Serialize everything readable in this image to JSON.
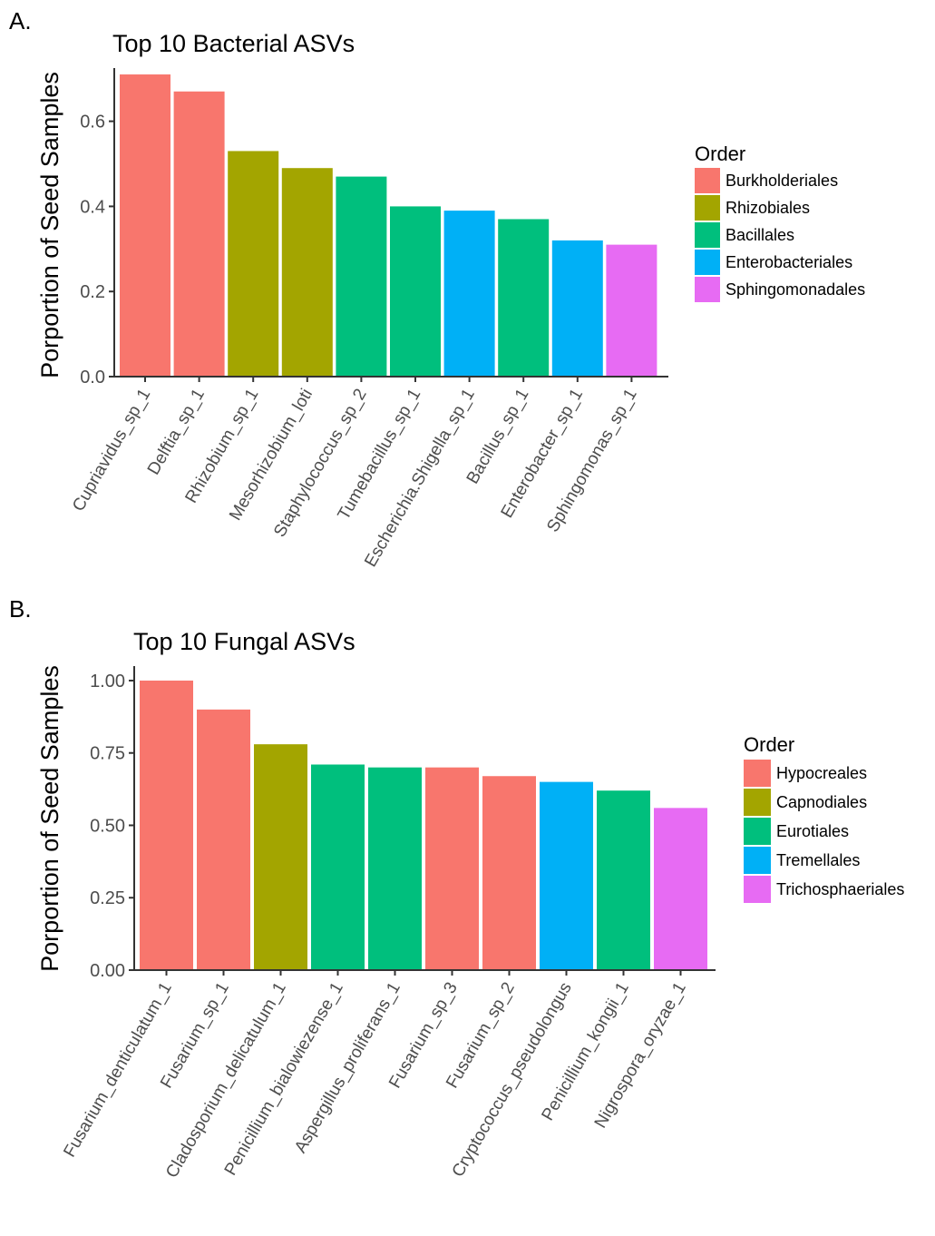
{
  "panels": {
    "a": {
      "letter": "A."
    },
    "b": {
      "letter": "B."
    }
  },
  "chart_data": [
    {
      "type": "bar",
      "title": "Top 10 Bacterial ASVs",
      "xlabel": "",
      "ylabel": "Porportion of Seed Samples",
      "ylim": [
        0,
        0.725
      ],
      "yticks": [
        0.0,
        0.2,
        0.4,
        0.6
      ],
      "ytick_labels": [
        "0.0",
        "0.2",
        "0.4",
        "0.6"
      ],
      "categories": [
        "Cupriavidus_sp_1",
        "Delftia_sp_1",
        "Rhizobium_sp_1",
        "Mesorhizobium_loti",
        "Staphylococcus_sp_2",
        "Tumebacillus_sp_1",
        "Escherichia.Shigella_sp_1",
        "Bacillus_sp_1",
        "Enterobacter_sp_1",
        "Sphingomonas_sp_1"
      ],
      "values": [
        0.71,
        0.67,
        0.53,
        0.49,
        0.47,
        0.4,
        0.39,
        0.37,
        0.32,
        0.31
      ],
      "groups": [
        "Burkholderiales",
        "Burkholderiales",
        "Rhizobiales",
        "Rhizobiales",
        "Bacillales",
        "Bacillales",
        "Enterobacteriales",
        "Bacillales",
        "Enterobacteriales",
        "Sphingomonadales"
      ],
      "legend": {
        "title": "Order",
        "position": "right",
        "entries": [
          {
            "label": "Burkholderiales",
            "color": "#F8766D"
          },
          {
            "label": "Rhizobiales",
            "color": "#A3A500"
          },
          {
            "label": "Bacillales",
            "color": "#00BF7D"
          },
          {
            "label": "Enterobacteriales",
            "color": "#00B0F6"
          },
          {
            "label": "Sphingomonadales",
            "color": "#E76BF3"
          }
        ]
      },
      "grid": false
    },
    {
      "type": "bar",
      "title": "Top 10 Fungal ASVs",
      "xlabel": "",
      "ylabel": "Porportion of Seed Samples",
      "ylim": [
        0,
        1.05
      ],
      "yticks": [
        0.0,
        0.25,
        0.5,
        0.75,
        1.0
      ],
      "ytick_labels": [
        "0.00",
        "0.25",
        "0.50",
        "0.75",
        "1.00"
      ],
      "categories": [
        "Fusarium_denticulatum_1",
        "Fusarium_sp_1",
        "Cladosporium_delicatulum_1",
        "Penicillium_bialowiezense_1",
        "Aspergillus_proliferans_1",
        "Fusarium_sp_3",
        "Fusarium_sp_2",
        "Cryptococcus_pseudolongus",
        "Penicillium_kongii_1",
        "Nigrospora_oryzae_1"
      ],
      "values": [
        1.0,
        0.9,
        0.78,
        0.71,
        0.7,
        0.7,
        0.67,
        0.65,
        0.62,
        0.56
      ],
      "groups": [
        "Hypocreales",
        "Hypocreales",
        "Capnodiales",
        "Eurotiales",
        "Eurotiales",
        "Hypocreales",
        "Hypocreales",
        "Tremellales",
        "Eurotiales",
        "Trichosphaeriales"
      ],
      "legend": {
        "title": "Order",
        "position": "right",
        "entries": [
          {
            "label": "Hypocreales",
            "color": "#F8766D"
          },
          {
            "label": "Capnodiales",
            "color": "#A3A500"
          },
          {
            "label": "Eurotiales",
            "color": "#00BF7D"
          },
          {
            "label": "Tremellales",
            "color": "#00B0F6"
          },
          {
            "label": "Trichosphaeriales",
            "color": "#E76BF3"
          }
        ]
      },
      "grid": false
    }
  ]
}
